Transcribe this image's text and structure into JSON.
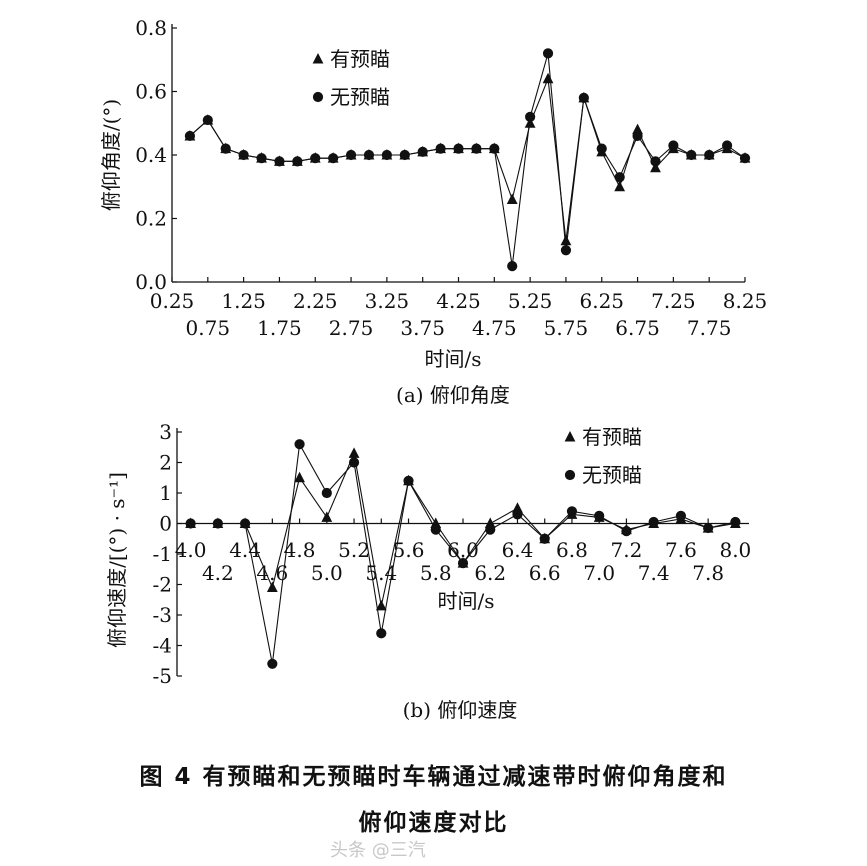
{
  "chart_data": [
    {
      "type": "line",
      "subtitle": "(a) 俯仰角度",
      "xlabel": "时间/s",
      "ylabel": "俯仰角度/(°)",
      "xlim": [
        0.25,
        8.25
      ],
      "ylim": [
        0.0,
        0.8
      ],
      "x_ticks_upper": [
        "0.25",
        "1.25",
        "2.25",
        "3.25",
        "4.25",
        "5.25",
        "6.25",
        "7.25",
        "8.25"
      ],
      "x_ticks_lower": [
        "0.75",
        "1.75",
        "2.75",
        "3.75",
        "4.75",
        "5.75",
        "6.75",
        "7.75"
      ],
      "y_ticks": [
        "0.0",
        "0.2",
        "0.4",
        "0.6",
        "0.8"
      ],
      "legend_position": "top-left",
      "series": [
        {
          "name": "有预瞄",
          "marker": "triangle",
          "x": [
            0.5,
            0.75,
            1.0,
            1.25,
            1.5,
            1.75,
            2.0,
            2.25,
            2.5,
            2.75,
            3.0,
            3.25,
            3.5,
            3.75,
            4.0,
            4.25,
            4.5,
            4.75,
            5.0,
            5.25,
            5.5,
            5.75,
            6.0,
            6.25,
            6.5,
            6.75,
            7.0,
            7.25,
            7.5,
            7.75,
            8.0,
            8.25
          ],
          "values": [
            0.46,
            0.51,
            0.42,
            0.4,
            0.39,
            0.38,
            0.38,
            0.39,
            0.39,
            0.4,
            0.4,
            0.4,
            0.4,
            0.41,
            0.42,
            0.42,
            0.42,
            0.42,
            0.26,
            0.5,
            0.64,
            0.13,
            0.58,
            0.41,
            0.3,
            0.48,
            0.36,
            0.42,
            0.4,
            0.4,
            0.42,
            0.39
          ]
        },
        {
          "name": "无预瞄",
          "marker": "circle",
          "x": [
            0.5,
            0.75,
            1.0,
            1.25,
            1.5,
            1.75,
            2.0,
            2.25,
            2.5,
            2.75,
            3.0,
            3.25,
            3.5,
            3.75,
            4.0,
            4.25,
            4.5,
            4.75,
            5.0,
            5.25,
            5.5,
            5.75,
            6.0,
            6.25,
            6.5,
            6.75,
            7.0,
            7.25,
            7.5,
            7.75,
            8.0,
            8.25
          ],
          "values": [
            0.46,
            0.51,
            0.42,
            0.4,
            0.39,
            0.38,
            0.38,
            0.39,
            0.39,
            0.4,
            0.4,
            0.4,
            0.4,
            0.41,
            0.42,
            0.42,
            0.42,
            0.42,
            0.05,
            0.52,
            0.72,
            0.1,
            0.58,
            0.42,
            0.33,
            0.46,
            0.38,
            0.43,
            0.4,
            0.4,
            0.43,
            0.39
          ]
        }
      ]
    },
    {
      "type": "line",
      "subtitle": "(b) 俯仰速度",
      "xlabel": "时间/s",
      "ylabel": "俯仰速度/[(°) · s⁻¹]",
      "xlim": [
        3.9,
        8.1
      ],
      "ylim": [
        -5,
        3
      ],
      "x_ticks_upper": [
        "4.0",
        "4.4",
        "4.8",
        "5.2",
        "5.6",
        "6.0",
        "6.4",
        "6.8",
        "7.2",
        "7.6",
        "8.0"
      ],
      "x_ticks_lower": [
        "4.2",
        "4.6",
        "5.0",
        "5.4",
        "5.8",
        "6.2",
        "6.6",
        "7.0",
        "7.4",
        "7.8"
      ],
      "y_ticks": [
        "3",
        "2",
        "1",
        "0",
        "-1",
        "-2",
        "-3",
        "-4",
        "-5"
      ],
      "legend_position": "top-right",
      "series": [
        {
          "name": "有预瞄",
          "marker": "triangle",
          "x": [
            4.0,
            4.2,
            4.4,
            4.6,
            4.8,
            5.0,
            5.2,
            5.4,
            5.6,
            5.8,
            6.0,
            6.2,
            6.4,
            6.6,
            6.8,
            7.0,
            7.2,
            7.4,
            7.6,
            7.8,
            8.0
          ],
          "values": [
            0.0,
            0.0,
            0.0,
            -2.1,
            1.5,
            0.2,
            2.3,
            -2.7,
            1.4,
            0.0,
            -1.3,
            0.0,
            0.5,
            -0.5,
            0.3,
            0.2,
            -0.2,
            0.0,
            0.15,
            -0.15,
            0.0
          ]
        },
        {
          "name": "无预瞄",
          "marker": "circle",
          "x": [
            4.0,
            4.2,
            4.4,
            4.6,
            4.8,
            5.0,
            5.2,
            5.4,
            5.6,
            5.8,
            6.0,
            6.2,
            6.4,
            6.6,
            6.8,
            7.0,
            7.2,
            7.4,
            7.6,
            7.8,
            8.0
          ],
          "values": [
            0.0,
            0.0,
            0.0,
            -4.6,
            2.6,
            1.0,
            2.0,
            -3.6,
            1.4,
            -0.2,
            -1.3,
            -0.2,
            0.3,
            -0.5,
            0.4,
            0.25,
            -0.25,
            0.05,
            0.25,
            -0.15,
            0.05
          ]
        }
      ]
    }
  ],
  "caption": {
    "line1": "图 4    有预瞄和无预瞄时车辆通过减速带时俯仰角度和",
    "line2": "俯仰速度对比"
  },
  "watermark": "头条 @三汽"
}
